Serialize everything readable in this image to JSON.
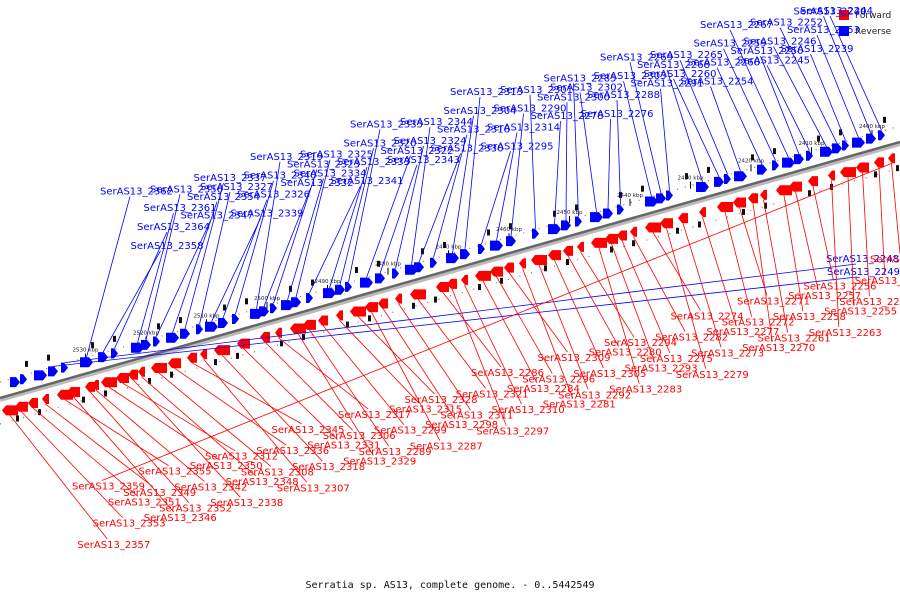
{
  "caption": "Serratia sp. AS13, complete genome. - 0..5442549",
  "legend": [
    {
      "label": "Forward",
      "color": "#ff0000"
    },
    {
      "label": "Reverse",
      "color": "#0000ff"
    }
  ],
  "colors": {
    "forward": "#ff0000",
    "reverse": "#0000ff",
    "backbone": "#888888"
  },
  "ticks": [
    "2400 kbp",
    "2410 kbp",
    "2420 kbp",
    "2430 kbp",
    "2440 kbp",
    "2450 kbp",
    "2460 kbp",
    "2470 kbp",
    "2480 kbp",
    "2490 kbp",
    "2500 kbp",
    "2510 kbp",
    "2520 kbp",
    "2530 kbp"
  ],
  "reverse_labels": [
    "SerAS13_2244",
    "SerAS13_2240",
    "SerAS13_2253",
    "SerAS13_2239",
    "SerAS13_2252",
    "SerAS13_2246",
    "SerAS13_2245",
    "SerAS13_2250",
    "SerAS13_2267",
    "SerAS13_2259",
    "SerAS13_2266",
    "SerAS13_2254",
    "SerAS13_2265",
    "SerAS13_2260",
    "SerAS13_2268",
    "SerAS13_2291",
    "SerAS13_2269",
    "SerAS13_2303",
    "SerAS13_2288",
    "SerAS13_2276",
    "SerAS13_2302",
    "SerAS13_2285",
    "SerAS13_2300",
    "SerAS13_2278",
    "SerAS13_2301",
    "SerAS13_2290",
    "SerAS13_2314",
    "SerAS13_2295",
    "SerAS13_2313",
    "SerAS13_2304",
    "SerAS13_2316",
    "SerAS13_2330",
    "SerAS13_2344",
    "SerAS13_2324",
    "SerAS13_2343",
    "SerAS13_2322",
    "SerAS13_2335",
    "SerAS13_2320",
    "SerAS13_2333",
    "SerAS13_2341",
    "SerAS13_2325",
    "SerAS13_2334",
    "SerAS13_2323",
    "SerAS13_2332",
    "SerAS13_2319",
    "SerAS13_2340",
    "SerAS13_2326",
    "SerAS13_2339",
    "SerAS13_2327",
    "SerAS13_2337",
    "SerAS13_2354",
    "SerAS13_2347",
    "SerAS13_2356",
    "SerAS13_2361",
    "SerAS13_2364",
    "SerAS13_2358",
    "SerAS13_2362",
    "SerAS13_2248",
    "SerAS13_2249"
  ],
  "forward_labels": [
    "SerAS13_2251",
    "SerAS13_2264",
    "SerAS13_2262",
    "SerAS13_2255",
    "SerAS13_2263",
    "SerAS13_2256",
    "SerAS13_2257",
    "SerAS13_2258",
    "SerAS13_2261",
    "SerAS13_2270",
    "SerAS13_2271",
    "SerAS13_2272",
    "SerAS13_2277",
    "SerAS13_2273",
    "SerAS13_2279",
    "SerAS13_2274",
    "SerAS13_2282",
    "SerAS13_2275",
    "SerAS13_2293",
    "SerAS13_2283",
    "SerAS13_2294",
    "SerAS13_2280",
    "SerAS13_2305",
    "SerAS13_2292",
    "SerAS13_2281",
    "SerAS13_2309",
    "SerAS13_2296",
    "SerAS13_2284",
    "SerAS13_2310",
    "SerAS13_2297",
    "SerAS13_2286",
    "SerAS13_2321",
    "SerAS13_2311",
    "SerAS13_2298",
    "SerAS13_2287",
    "SerAS13_2328",
    "SerAS13_2315",
    "SerAS13_2299",
    "SerAS13_2289",
    "SerAS13_2329",
    "SerAS13_2317",
    "SerAS13_2306",
    "SerAS13_2331",
    "SerAS13_2318",
    "SerAS13_2307",
    "SerAS13_2345",
    "SerAS13_2336",
    "SerAS13_2308",
    "SerAS13_2348",
    "SerAS13_2338",
    "SerAS13_2312",
    "SerAS13_2350",
    "SerAS13_2342",
    "SerAS13_2352",
    "SerAS13_2346",
    "SerAS13_2355",
    "SerAS13_2349",
    "SerAS13_2351",
    "SerAS13_2353",
    "SerAS13_2357",
    "SerAS13_2359"
  ]
}
